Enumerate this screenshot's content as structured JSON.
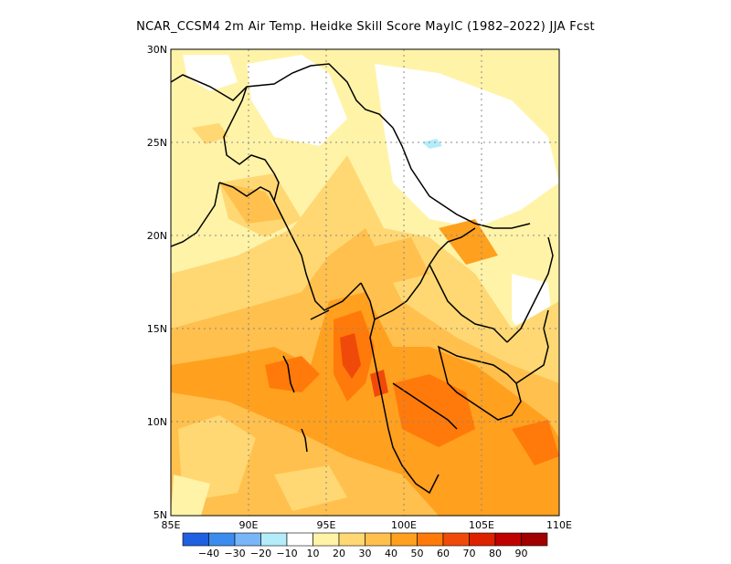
{
  "title": "NCAR_CCSM4 2m Air Temp. Heidke Skill Score MayIC (1982–2022) JJA Fcst",
  "map": {
    "lon_range": [
      85,
      110
    ],
    "lat_range": [
      5,
      30
    ],
    "lon_ticks": [
      "85E",
      "90E",
      "95E",
      "100E",
      "105E",
      "110E"
    ],
    "lat_ticks": [
      "5N",
      "10N",
      "15N",
      "20N",
      "25N",
      "30N"
    ]
  },
  "colorbar": {
    "colors": [
      "#1f5fe0",
      "#3c8cf0",
      "#78b6f8",
      "#b4ecfa",
      "#ffffff",
      "#fff3a8",
      "#ffd873",
      "#ffc04d",
      "#ffa01e",
      "#ff7a0a",
      "#f04a0a",
      "#dd2200",
      "#c00000",
      "#a00000"
    ],
    "labels": [
      "−40",
      "−30",
      "−20",
      "−10",
      "10",
      "20",
      "30",
      "40",
      "50",
      "60",
      "70",
      "80",
      "90"
    ]
  }
}
